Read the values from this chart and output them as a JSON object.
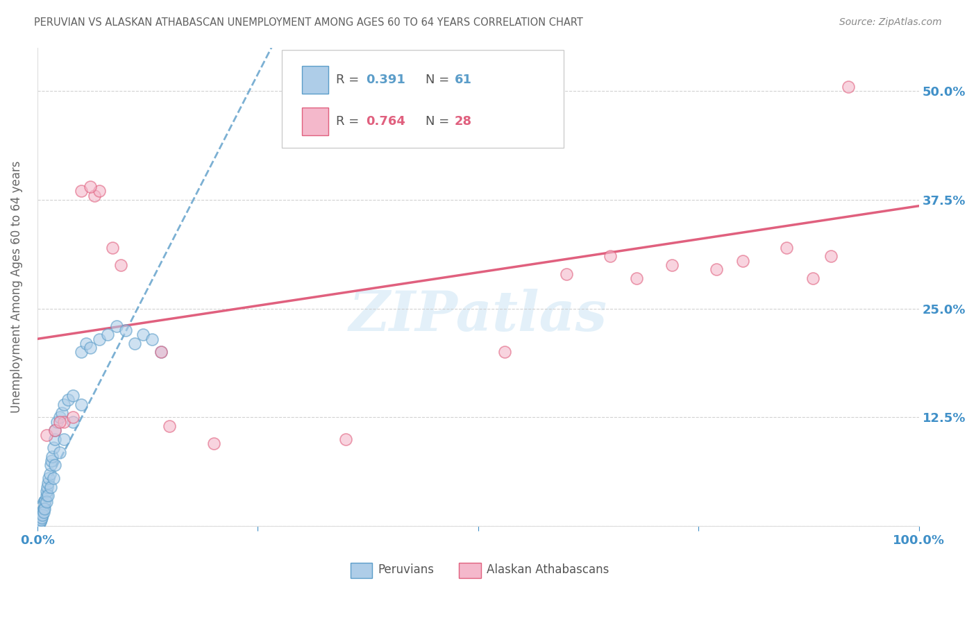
{
  "title": "PERUVIAN VS ALASKAN ATHABASCAN UNEMPLOYMENT AMONG AGES 60 TO 64 YEARS CORRELATION CHART",
  "source": "Source: ZipAtlas.com",
  "ylabel": "Unemployment Among Ages 60 to 64 years",
  "xlim": [
    0,
    100
  ],
  "ylim": [
    0,
    55
  ],
  "yticks": [
    0,
    12.5,
    25.0,
    37.5,
    50.0
  ],
  "ytick_labels": [
    "",
    "12.5%",
    "25.0%",
    "37.5%",
    "50.0%"
  ],
  "legend_r1": "0.391",
  "legend_n1": "61",
  "legend_r2": "0.764",
  "legend_n2": "28",
  "legend_label1": "Peruvians",
  "legend_label2": "Alaskan Athabascans",
  "watermark": "ZIPatlas",
  "blue_fill": "#aecde8",
  "blue_edge": "#5b9dc9",
  "pink_fill": "#f4b8cb",
  "pink_edge": "#e0607e",
  "blue_line_color": "#5b9dc9",
  "pink_line_color": "#e0607e",
  "title_color": "#606060",
  "source_color": "#888888",
  "axis_label_color": "#4090c8",
  "ylabel_color": "#666666",
  "watermark_color": "#cce5f5",
  "peruvians_x": [
    0.1,
    0.15,
    0.2,
    0.2,
    0.25,
    0.3,
    0.35,
    0.4,
    0.5,
    0.5,
    0.6,
    0.7,
    0.8,
    0.9,
    1.0,
    1.0,
    1.1,
    1.2,
    1.3,
    1.4,
    1.5,
    1.6,
    1.7,
    1.8,
    2.0,
    2.0,
    2.2,
    2.5,
    2.8,
    3.0,
    3.5,
    4.0,
    5.0,
    5.5,
    6.0,
    7.0,
    8.0,
    9.0,
    10.0,
    11.0,
    12.0,
    13.0,
    14.0,
    0.1,
    0.15,
    0.2,
    0.3,
    0.4,
    0.5,
    0.6,
    0.7,
    0.8,
    1.0,
    1.2,
    1.5,
    1.8,
    2.0,
    2.5,
    3.0,
    4.0,
    5.0
  ],
  "peruvians_y": [
    0.2,
    0.3,
    0.4,
    0.5,
    0.6,
    0.7,
    0.8,
    1.0,
    1.2,
    1.5,
    1.8,
    2.0,
    2.5,
    3.0,
    3.5,
    4.0,
    4.5,
    5.0,
    5.5,
    6.0,
    7.0,
    7.5,
    8.0,
    9.0,
    10.0,
    11.0,
    12.0,
    12.5,
    13.0,
    14.0,
    14.5,
    15.0,
    20.0,
    21.0,
    20.5,
    21.5,
    22.0,
    23.0,
    22.5,
    21.0,
    22.0,
    21.5,
    20.0,
    0.1,
    0.2,
    0.3,
    0.5,
    0.7,
    1.0,
    1.3,
    1.6,
    2.0,
    2.8,
    3.5,
    4.5,
    5.5,
    7.0,
    8.5,
    10.0,
    12.0,
    14.0
  ],
  "athabascan_x": [
    1.0,
    2.0,
    3.0,
    4.0,
    6.5,
    7.0,
    8.5,
    9.5,
    14.0,
    15.0,
    20.0,
    35.0,
    50.0,
    50.5,
    53.0,
    60.0,
    65.0,
    68.0,
    72.0,
    77.0,
    80.0,
    85.0,
    88.0,
    90.0,
    92.0,
    2.5,
    5.0,
    6.0
  ],
  "athabascan_y": [
    10.5,
    11.0,
    12.0,
    12.5,
    38.0,
    38.5,
    32.0,
    30.0,
    20.0,
    11.5,
    9.5,
    10.0,
    50.0,
    50.5,
    20.0,
    29.0,
    31.0,
    28.5,
    30.0,
    29.5,
    30.5,
    32.0,
    28.5,
    31.0,
    50.5,
    12.0,
    38.5,
    39.0
  ]
}
